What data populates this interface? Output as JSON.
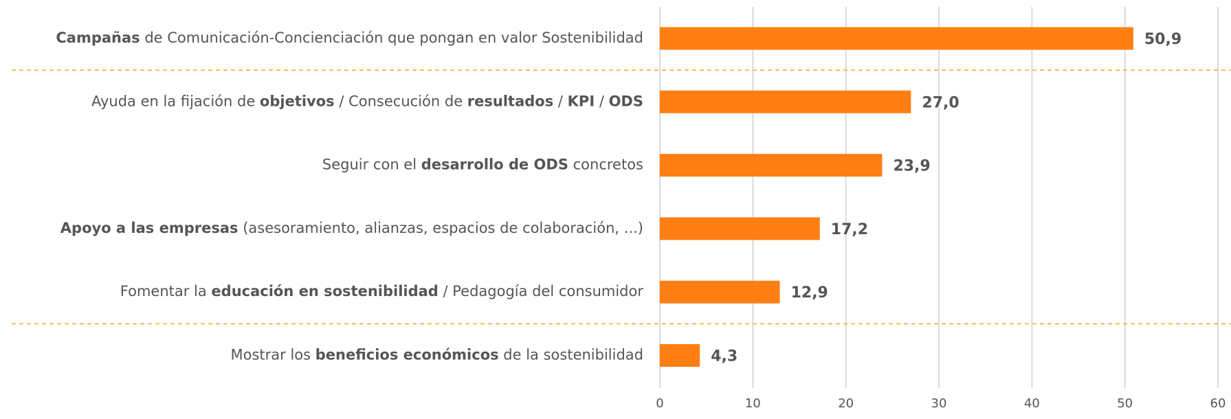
{
  "chart_data": {
    "type": "barh",
    "categories": [
      [
        {
          "text": "Campañas",
          "bold": true
        },
        {
          "text": " de Comunicación-Concienciación que pongan en valor Sostenibilidad",
          "bold": false
        }
      ],
      [
        {
          "text": "Ayuda en la fijación de ",
          "bold": false
        },
        {
          "text": "objetivos",
          "bold": true
        },
        {
          "text": " / Consecución de ",
          "bold": false
        },
        {
          "text": "resultados",
          "bold": true
        },
        {
          "text": " / ",
          "bold": false
        },
        {
          "text": "KPI",
          "bold": true
        },
        {
          "text": " / ",
          "bold": false
        },
        {
          "text": "ODS",
          "bold": true
        }
      ],
      [
        {
          "text": "Seguir con el ",
          "bold": false
        },
        {
          "text": "desarrollo de ODS",
          "bold": true
        },
        {
          "text": " concretos",
          "bold": false
        }
      ],
      [
        {
          "text": "Apoyo a las empresas",
          "bold": true
        },
        {
          "text": " (asesoramiento, alianzas, espacios de colaboración, ...)",
          "bold": false
        }
      ],
      [
        {
          "text": "Fomentar la ",
          "bold": false
        },
        {
          "text": "educación en sostenibilidad",
          "bold": true
        },
        {
          "text": " / Pedagogía del consumidor",
          "bold": false
        }
      ],
      [
        {
          "text": "Mostrar los ",
          "bold": false
        },
        {
          "text": "beneficios económicos",
          "bold": true
        },
        {
          "text": " de la sostenibilidad",
          "bold": false
        }
      ]
    ],
    "values": [
      50.9,
      27.0,
      23.9,
      17.2,
      12.9,
      4.3
    ],
    "value_labels": [
      "50,9",
      "27,0",
      "23,9",
      "17,2",
      "12,9",
      "4,3"
    ],
    "color": "#ff7f14",
    "xlim": [
      0,
      60
    ],
    "xticks": [
      0,
      10,
      20,
      30,
      40,
      50,
      60
    ],
    "grid": true
  }
}
